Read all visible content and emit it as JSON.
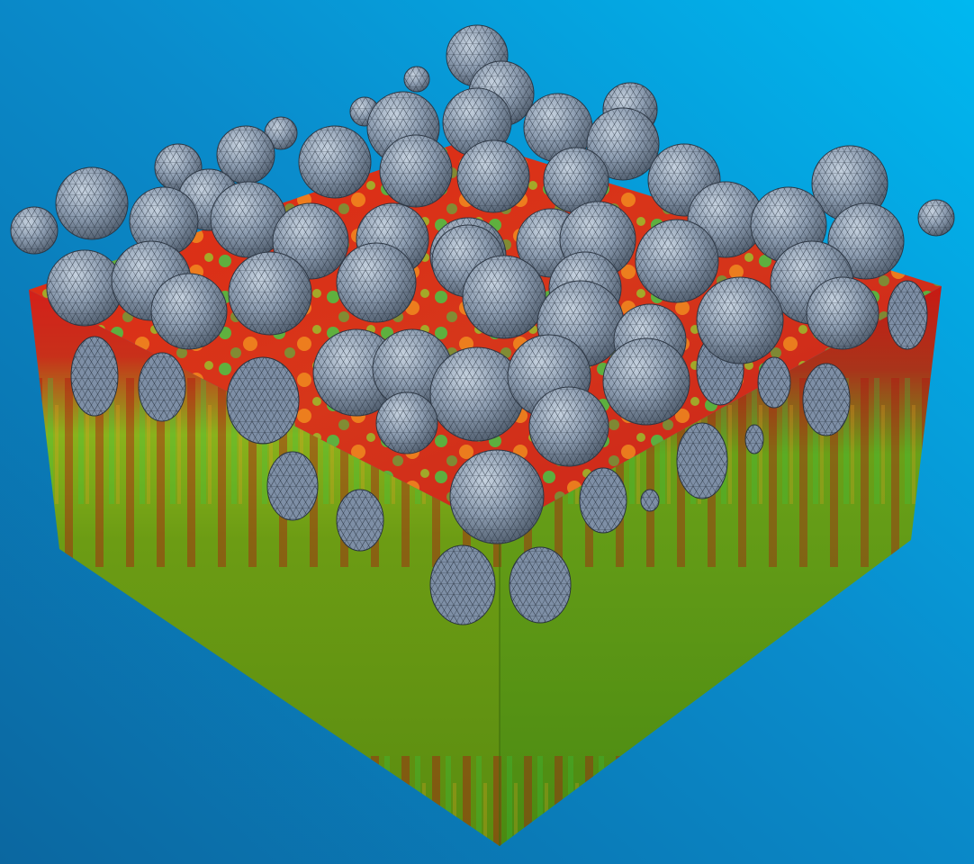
{
  "scene": {
    "kind": "3d-render",
    "subject": "particle-packing-mesh",
    "visible_text": []
  },
  "colors": {
    "background_light": "#00b4ee",
    "background_dark": "#0b6fa8",
    "field_high": "#cc1510",
    "field_mid": "#f2a41a",
    "field_low": "#2fe04a",
    "field_base": "#6a9a10",
    "field_min": "#0a1a80",
    "particle_fill": "#8697ad",
    "particle_highlight": "#c3cfdd",
    "particle_shadow": "#4b5868",
    "mesh_lines": "#26303c"
  }
}
